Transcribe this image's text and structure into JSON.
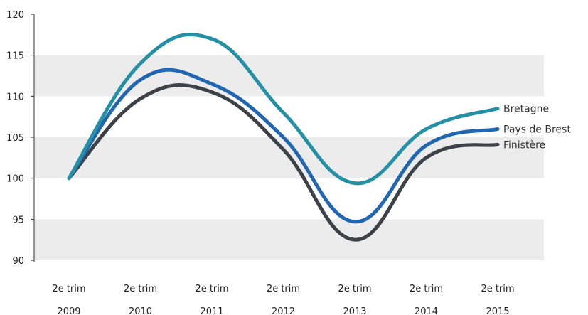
{
  "chart_data": {
    "type": "line",
    "categories": [
      [
        "2e trim",
        "2009"
      ],
      [
        "2e trim",
        "2010"
      ],
      [
        "2e trim",
        "2011"
      ],
      [
        "2e trim",
        "2012"
      ],
      [
        "2e trim",
        "2013"
      ],
      [
        "2e trim",
        "2014"
      ],
      [
        "2e trim",
        "2015"
      ]
    ],
    "series": [
      {
        "name": "Bretagne",
        "color": "#2390a6",
        "values": [
          100,
          114,
          117,
          108,
          99.4,
          106,
          108.5
        ]
      },
      {
        "name": "Pays de Brest",
        "color": "#2166b2",
        "values": [
          100,
          112,
          111.5,
          105,
          94.7,
          104,
          106
        ]
      },
      {
        "name": "Finistère",
        "color": "#3d4148",
        "values": [
          100,
          109.7,
          110.5,
          103.5,
          92.5,
          102.5,
          104.1
        ]
      }
    ],
    "ylim": [
      90,
      120
    ],
    "yticks": [
      90,
      95,
      100,
      105,
      110,
      115,
      120
    ],
    "grid": "alternating horizontal bands",
    "band_color": "#ececec",
    "legend": "labels at right end of lines"
  }
}
